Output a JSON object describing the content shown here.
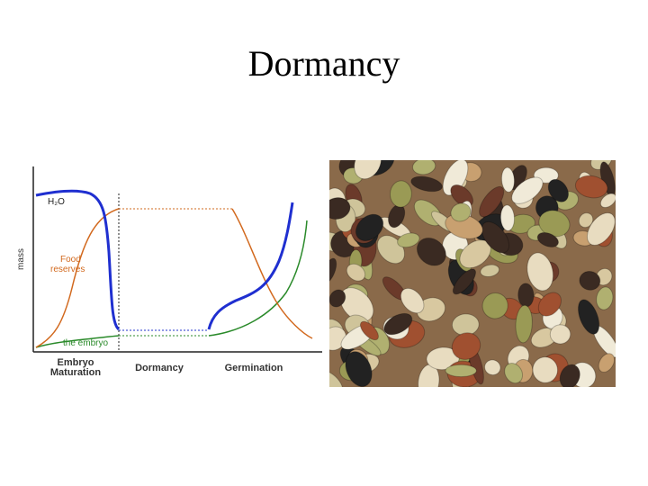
{
  "title": "Dormancy",
  "diagram": {
    "y_axis_label": "mass",
    "curve_labels": {
      "water": "H₂O",
      "food_reserves": [
        "Food",
        "reserves"
      ],
      "embryo": "the embryo"
    },
    "phases": {
      "maturation": [
        "Embryo",
        "Maturation"
      ],
      "dormancy": "Dormancy",
      "germination": "Germination"
    }
  }
}
